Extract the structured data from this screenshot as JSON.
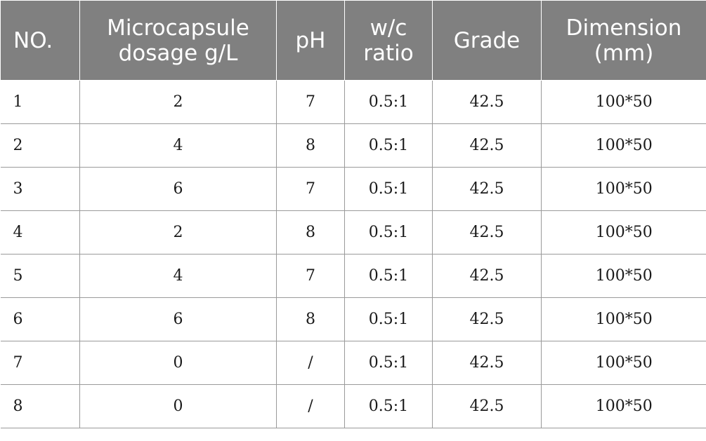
{
  "table": {
    "headers": [
      [
        "NO."
      ],
      [
        "Microcapsule",
        "dosage g/L"
      ],
      [
        "pH"
      ],
      [
        "w/c",
        "ratio"
      ],
      [
        "Grade"
      ],
      [
        "Dimension",
        "(mm)"
      ]
    ],
    "rows": [
      [
        "1",
        "2",
        "7",
        "0.5:1",
        "42.5",
        "100*50"
      ],
      [
        "2",
        "4",
        "8",
        "0.5:1",
        "42.5",
        "100*50"
      ],
      [
        "3",
        "6",
        "7",
        "0.5:1",
        "42.5",
        "100*50"
      ],
      [
        "4",
        "2",
        "8",
        "0.5:1",
        "42.5",
        "100*50"
      ],
      [
        "5",
        "4",
        "7",
        "0.5:1",
        "42.5",
        "100*50"
      ],
      [
        "6",
        "6",
        "8",
        "0.5:1",
        "42.5",
        "100*50"
      ],
      [
        "7",
        "0",
        "/",
        "0.5:1",
        "42.5",
        "100*50"
      ],
      [
        "8",
        "0",
        "/",
        "0.5:1",
        "42.5",
        "100*50"
      ]
    ]
  }
}
